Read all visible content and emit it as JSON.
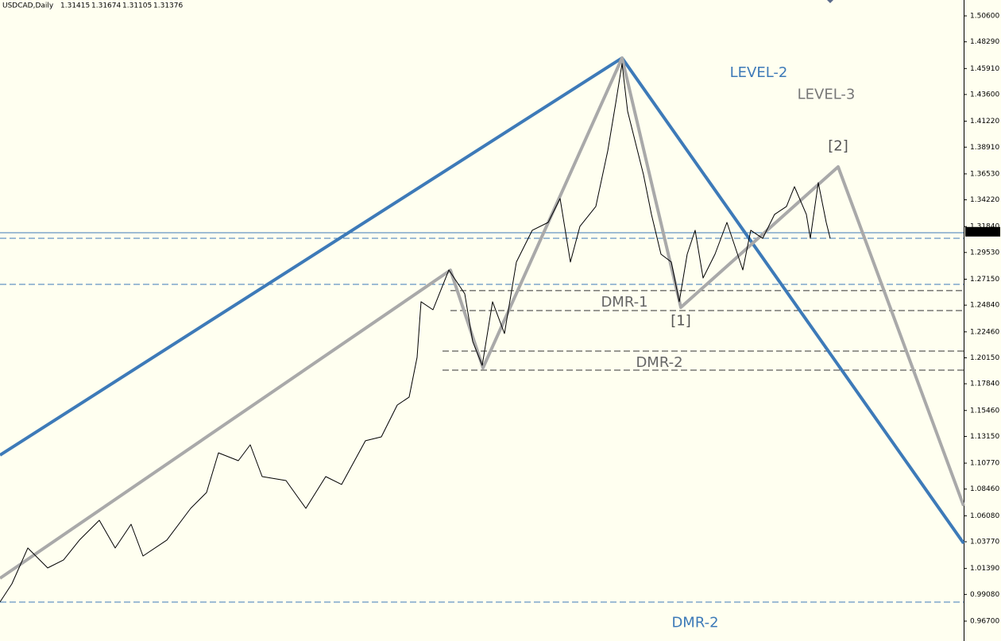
{
  "chart_data": {
    "type": "line",
    "symbol": "USDCAD,Daily",
    "ohlc": [
      1.31415,
      1.31674,
      1.31105,
      1.31376
    ],
    "current_price": 1.31376,
    "xlim": [
      0,
      1213
    ],
    "ylim": [
      0.9493,
      1.52015
    ],
    "yticks": [
      {
        "value": 1.506,
        "label": "1.50600"
      },
      {
        "value": 1.4829,
        "label": "1.48290"
      },
      {
        "value": 1.4591,
        "label": "1.45910"
      },
      {
        "value": 1.436,
        "label": "1.43600"
      },
      {
        "value": 1.4122,
        "label": "1.41220"
      },
      {
        "value": 1.3891,
        "label": "1.38910"
      },
      {
        "value": 1.3653,
        "label": "1.36530"
      },
      {
        "value": 1.3422,
        "label": "1.34220"
      },
      {
        "value": 1.3184,
        "label": "1.31840"
      },
      {
        "value": 1.2953,
        "label": "1.29530"
      },
      {
        "value": 1.2715,
        "label": "1.27150"
      },
      {
        "value": 1.2484,
        "label": "1.24840"
      },
      {
        "value": 1.2246,
        "label": "1.22460"
      },
      {
        "value": 1.2015,
        "label": "1.20150"
      },
      {
        "value": 1.1784,
        "label": "1.17840"
      },
      {
        "value": 1.1546,
        "label": "1.15460"
      },
      {
        "value": 1.1315,
        "label": "1.13150"
      },
      {
        "value": 1.1077,
        "label": "1.10770"
      },
      {
        "value": 1.0846,
        "label": "1.08460"
      },
      {
        "value": 1.0608,
        "label": "1.06080"
      },
      {
        "value": 1.0377,
        "label": "1.03770"
      },
      {
        "value": 1.0139,
        "label": "1.01390"
      },
      {
        "value": 0.9908,
        "label": "0.99080"
      },
      {
        "value": 0.967,
        "label": "0.96700"
      }
    ],
    "series": [
      {
        "color": "#000000",
        "width": 1,
        "x": [
          0,
          15,
          35,
          60,
          80,
          100,
          125,
          145,
          165,
          180,
          210,
          240,
          260,
          275,
          300,
          315,
          330,
          360,
          385,
          410,
          430,
          460,
          480,
          500,
          515,
          525,
          530,
          545,
          565,
          585,
          595,
          607,
          620,
          635,
          650,
          670,
          690,
          705,
          718,
          730,
          750,
          765,
          775,
          783,
          790,
          800,
          810,
          820,
          832,
          845,
          855,
          865,
          875,
          885,
          900,
          915,
          935,
          945,
          960,
          975,
          990,
          1000,
          1015,
          1020,
          1030,
          1040,
          1045
        ],
        "values": [
          0.984,
          1.0002,
          1.0321,
          1.0144,
          1.0215,
          1.0392,
          1.0568,
          1.0321,
          1.0533,
          1.025,
          1.0392,
          1.0674,
          1.0816,
          1.1169,
          1.1099,
          1.124,
          1.0957,
          1.0922,
          1.0674,
          1.0957,
          1.0887,
          1.1276,
          1.1311,
          1.1594,
          1.1665,
          1.2019,
          1.2514,
          1.2443,
          1.2797,
          1.2585,
          1.216,
          1.1948,
          1.2514,
          1.2231,
          1.2868,
          1.3151,
          1.3221,
          1.3434,
          1.2868,
          1.3186,
          1.3363,
          1.3858,
          1.4282,
          1.4636,
          1.4211,
          1.3928,
          1.3645,
          1.3292,
          1.2938,
          1.2868,
          1.2514,
          1.2938,
          1.3151,
          1.2726,
          1.2938,
          1.3221,
          1.2797,
          1.3151,
          1.3079,
          1.3292,
          1.3363,
          1.3539,
          1.3292,
          1.3079,
          1.3575,
          1.3221,
          1.3079
        ]
      },
      {
        "color": "#3d7ab8",
        "width": 4,
        "x": [
          0,
          783,
          1213
        ],
        "values": [
          1.1148,
          1.4685,
          1.0363
        ]
      },
      {
        "color": "#a9a9a9",
        "width": 4,
        "x": [
          0,
          567,
          608,
          783,
          857,
          1055,
          1213
        ],
        "values": [
          1.0052,
          1.2796,
          1.1926,
          1.4685,
          1.2464,
          1.3716,
          1.0696
        ]
      }
    ],
    "hlines": [
      {
        "value": 1.3129,
        "color": "#3d7ab8",
        "style": "solid",
        "from": 0
      },
      {
        "value": 1.3079,
        "color": "#3d7ab8",
        "style": "dashed",
        "from": 0
      },
      {
        "value": 1.2669,
        "color": "#3d7ab8",
        "style": "dashed",
        "from": 0
      },
      {
        "value": 0.984,
        "color": "#3d7ab8",
        "style": "dashed",
        "from": 0
      },
      {
        "value": 1.2613,
        "color": "#333333",
        "style": "dashed",
        "from": 567
      },
      {
        "value": 1.2436,
        "color": "#333333",
        "style": "dashed",
        "from": 567
      },
      {
        "value": 1.2075,
        "color": "#333333",
        "style": "dashed",
        "from": 557
      },
      {
        "value": 1.1905,
        "color": "#333333",
        "style": "dashed",
        "from": 557
      }
    ],
    "annotations": [
      {
        "text": "LEVEL-2",
        "color": "#3d7ab8",
        "x": 955,
        "y": 1.455
      },
      {
        "text": "LEVEL-3",
        "color": "#777777",
        "x": 1040,
        "y": 1.4355
      },
      {
        "text": "[2]",
        "color": "#555555",
        "x": 1055,
        "y": 1.3895
      },
      {
        "text": "[1]",
        "color": "#555555",
        "x": 857,
        "y": 1.234
      },
      {
        "text": "DMR-1",
        "color": "#666666",
        "x": 786,
        "y": 1.2505
      },
      {
        "text": "DMR-2",
        "color": "#666666",
        "x": 830,
        "y": 1.1969
      },
      {
        "text": "DMR-2",
        "color": "#3d7ab8",
        "x": 875,
        "y": 0.9651
      }
    ]
  }
}
